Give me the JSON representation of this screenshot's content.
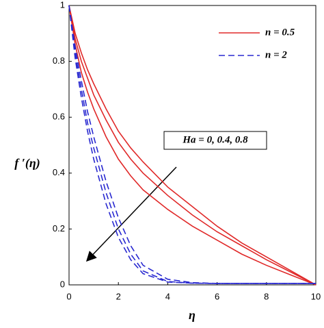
{
  "chart_data": {
    "type": "line",
    "x_label": "η",
    "y_label": "f ′(η)",
    "annotation": "Ha = 0, 0.4, 0.8",
    "x": [
      0,
      0.25,
      0.5,
      0.75,
      1,
      1.5,
      2,
      2.5,
      3,
      4,
      5,
      6,
      7,
      8,
      9,
      10
    ],
    "series": [
      {
        "name": "n = 0.5",
        "color": "#e02828",
        "dashed": false,
        "curves": [
          [
            1,
            0.9,
            0.83,
            0.77,
            0.72,
            0.63,
            0.55,
            0.49,
            0.44,
            0.35,
            0.28,
            0.21,
            0.15,
            0.1,
            0.05,
            0
          ],
          [
            1,
            0.88,
            0.8,
            0.74,
            0.68,
            0.59,
            0.51,
            0.45,
            0.4,
            0.32,
            0.25,
            0.19,
            0.14,
            0.09,
            0.045,
            0
          ],
          [
            1,
            0.86,
            0.76,
            0.69,
            0.63,
            0.53,
            0.45,
            0.39,
            0.34,
            0.27,
            0.21,
            0.16,
            0.11,
            0.07,
            0.035,
            0
          ]
        ]
      },
      {
        "name": "n = 2",
        "color": "#2828d0",
        "dashed": true,
        "curves": [
          [
            1,
            0.85,
            0.73,
            0.62,
            0.53,
            0.37,
            0.24,
            0.14,
            0.07,
            0.02,
            0.008,
            0.005,
            0.005,
            0.005,
            0.005,
            0.005
          ],
          [
            1,
            0.83,
            0.7,
            0.58,
            0.49,
            0.33,
            0.2,
            0.11,
            0.05,
            0.012,
            0.006,
            0.005,
            0.005,
            0.005,
            0.005,
            0.005
          ],
          [
            1,
            0.81,
            0.67,
            0.55,
            0.45,
            0.29,
            0.17,
            0.09,
            0.04,
            0.01,
            0.006,
            0.005,
            0.005,
            0.005,
            0.005,
            0.005
          ]
        ]
      }
    ],
    "xlim": [
      0,
      10
    ],
    "xticks": [
      0,
      2,
      4,
      6,
      8,
      10
    ],
    "ylim": [
      0,
      1
    ],
    "yticks": [
      0,
      0.2,
      0.4,
      0.6,
      0.8,
      1
    ],
    "grid": false,
    "legend": "upper right"
  }
}
